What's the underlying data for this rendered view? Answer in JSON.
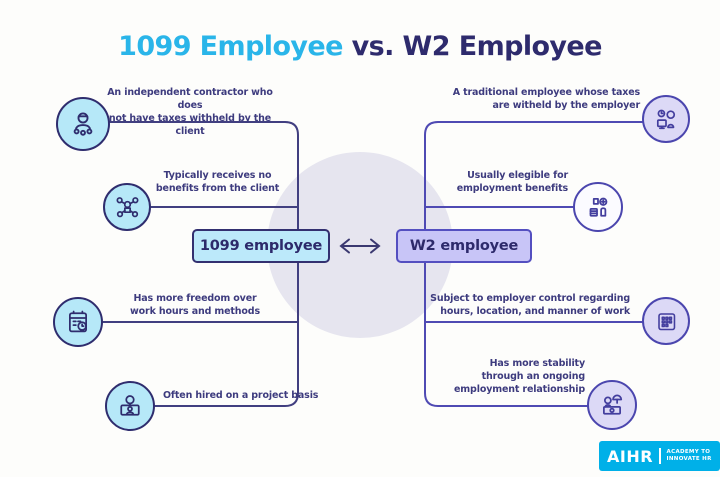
{
  "title": {
    "highlight": "1099 Employee",
    "rest": " vs. W2 Employee"
  },
  "comparison": {
    "left_label": "1099 employee",
    "right_label": "W2 employee"
  },
  "left_items": [
    {
      "icon": "independent-contractor-icon",
      "lines": [
        "An independent contractor who does",
        "not have taxes withheld by the client"
      ]
    },
    {
      "icon": "no-benefits-network-icon",
      "lines": [
        "Typically receives no",
        "benefits from the client"
      ]
    },
    {
      "icon": "flexible-schedule-icon",
      "lines": [
        "Has more freedom over",
        "work hours and methods"
      ]
    },
    {
      "icon": "project-basis-icon",
      "lines": [
        "Often hired on a project basis"
      ]
    }
  ],
  "right_items": [
    {
      "icon": "traditional-employee-icon",
      "lines": [
        "A traditional employee whose taxes",
        "are witheld by the employer"
      ]
    },
    {
      "icon": "employment-benefits-icon",
      "lines": [
        "Usually elegible for",
        "employment benefits"
      ]
    },
    {
      "icon": "employer-control-icon",
      "lines": [
        "Subject to employer control regarding",
        "hours, location, and manner of work"
      ]
    },
    {
      "icon": "stability-icon",
      "lines": [
        "Has more stability",
        "through an ongoing",
        "employment relationship"
      ]
    }
  ],
  "logo": {
    "brand": "AIHR",
    "tagline": [
      "ACADEMY TO",
      "INNOVATE HR"
    ]
  },
  "colors": {
    "accent_cyan": "#2ab5e9",
    "navy": "#2e2b6d",
    "purple_line": "#4f4ab3",
    "navy_line": "#413f80",
    "left_icon_fill": "#b6e8f8",
    "right_icon_fill": "#dcd9f6",
    "box_1099_bg": "#bce9fa",
    "box_w2_bg": "#c8c5f7",
    "center_circle_bg": "#e6e5ef",
    "logo_bg": "#00b0e8"
  }
}
